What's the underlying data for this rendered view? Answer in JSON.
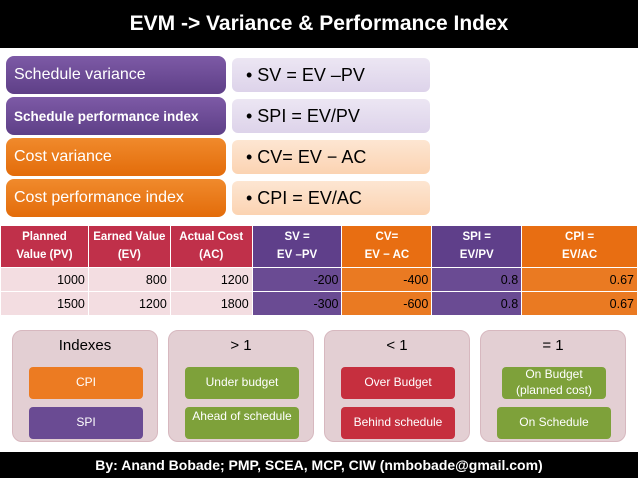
{
  "title": "EVM -> Variance & Performance Index",
  "formulas": [
    {
      "label": "Schedule variance",
      "formula": "• SV = EV –PV"
    },
    {
      "label": "Schedule performance index",
      "formula": "• SPI = EV/PV"
    },
    {
      "label": "Cost variance",
      "formula": "• CV= EV − AC"
    },
    {
      "label": "Cost performance index",
      "formula": "• CPI = EV/AC"
    }
  ],
  "table": {
    "headers": [
      [
        "Planned",
        "Value (PV)"
      ],
      [
        "Earned Value",
        "(EV)"
      ],
      [
        "Actual Cost",
        "(AC)"
      ],
      [
        "SV =",
        "EV –PV"
      ],
      [
        "CV=",
        "EV − AC"
      ],
      [
        "SPI =",
        "EV/PV"
      ],
      [
        "CPI =",
        "EV/AC"
      ]
    ],
    "rows": [
      [
        "1000",
        "800",
        "1200",
        "-200",
        "-400",
        "0.8",
        "0.67"
      ],
      [
        "1500",
        "1200",
        "1800",
        "-300",
        "-600",
        "0.8",
        "0.67"
      ]
    ]
  },
  "panels": [
    {
      "head": "Indexes",
      "top": "CPI",
      "bottom": "SPI"
    },
    {
      "head": "> 1",
      "top": "Under budget",
      "bottom": "Ahead of schedule"
    },
    {
      "head": "< 1",
      "top": "Over Budget",
      "bottom": "Behind schedule"
    },
    {
      "head": "= 1",
      "top": "On Budget (planned cost)",
      "bottom": "On Schedule"
    }
  ],
  "footer": "By: Anand Bobade; PMP, SCEA, MCP, CIW (nmbobade@gmail.com)"
}
